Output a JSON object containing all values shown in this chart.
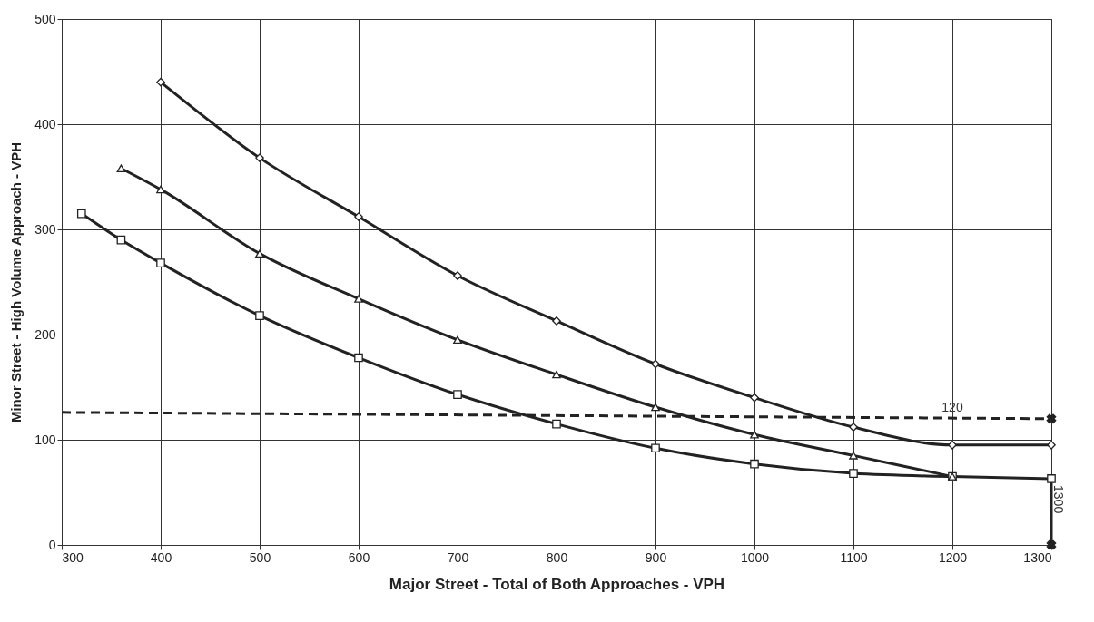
{
  "chart_data": {
    "type": "line",
    "xlabel": "Major Street - Total of Both Approaches - VPH",
    "ylabel": "Minor Street - High Volume Approach - VPH",
    "xlim": [
      300,
      1300
    ],
    "ylim": [
      0,
      500
    ],
    "xticks": [
      300,
      400,
      500,
      600,
      700,
      800,
      900,
      1000,
      1100,
      1200,
      1300
    ],
    "yticks": [
      0,
      100,
      200,
      300,
      400,
      500
    ],
    "grid": true,
    "series": [
      {
        "color": "#222222",
        "marker": "diamond",
        "line_style": "solid",
        "x": [
          400,
          500,
          600,
          700,
          800,
          900,
          1000,
          1100,
          1200,
          1300
        ],
        "values": [
          440,
          368,
          312,
          256,
          213,
          172,
          140,
          112,
          95,
          95
        ]
      },
      {
        "color": "#222222",
        "marker": "triangle",
        "line_style": "solid",
        "x": [
          360,
          400,
          500,
          600,
          700,
          800,
          900,
          1000,
          1100,
          1200
        ],
        "values": [
          358,
          338,
          277,
          234,
          195,
          162,
          131,
          105,
          85,
          65
        ]
      },
      {
        "color": "#222222",
        "marker": "square",
        "line_style": "solid",
        "x": [
          320,
          360,
          400,
          500,
          600,
          700,
          800,
          900,
          1000,
          1100,
          1200,
          1300
        ],
        "values": [
          315,
          290,
          268,
          218,
          178,
          143,
          115,
          92,
          77,
          68,
          65,
          63
        ]
      },
      {
        "color": "#222222",
        "marker": "none",
        "line_style": "dashed",
        "x": [
          300,
          1300
        ],
        "values": [
          126,
          120
        ]
      },
      {
        "color": "#222222",
        "marker": "none",
        "line_style": "solid",
        "x": [
          1300,
          1300
        ],
        "values": [
          63,
          0
        ]
      },
      {
        "type": "scatter",
        "color": "#222222",
        "marker": "cross",
        "x": [
          1300,
          1300
        ],
        "values": [
          120,
          0
        ]
      }
    ],
    "annotations": [
      {
        "text": "120",
        "x": 1200,
        "y": 121
      },
      {
        "text": "1300",
        "x": 1300,
        "y": 40
      }
    ]
  }
}
